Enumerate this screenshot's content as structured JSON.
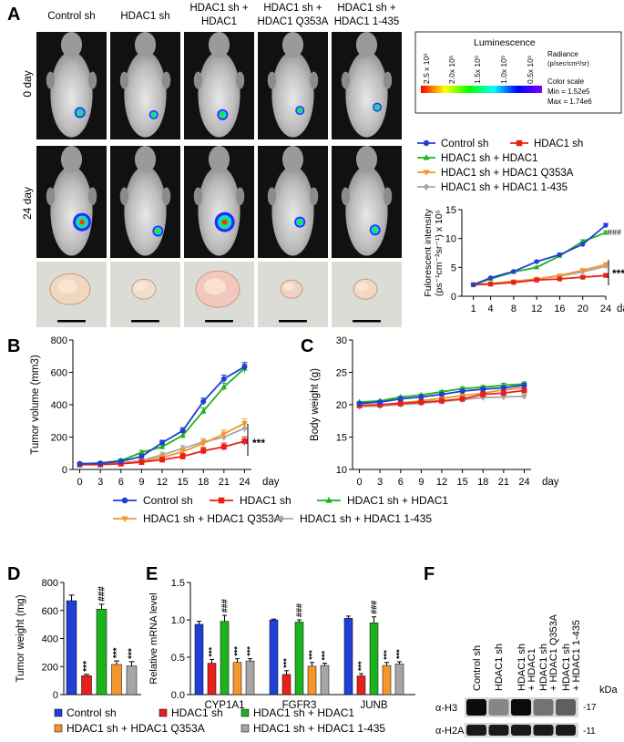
{
  "panel_letters": [
    "A",
    "B",
    "C",
    "D",
    "E",
    "F"
  ],
  "colors": {
    "control": "#1f3fd6",
    "hdac1_sh": "#e8201a",
    "hdac1_sh_hdac1": "#1db31d",
    "q353a": "#f3962b",
    "d1_435": "#a6a6a6"
  },
  "panelA": {
    "column_labels": [
      [
        "Control sh"
      ],
      [
        "HDAC1 sh"
      ],
      [
        "HDAC1 sh +",
        "HDAC1"
      ],
      [
        "HDAC1 sh +",
        "HDAC1 Q353A"
      ],
      [
        "HDAC1 sh +",
        "HDAC1 1-435"
      ]
    ],
    "row_labels": [
      "0 day",
      "24 day"
    ],
    "colorbar": {
      "title": "Luminescence",
      "ticks": [
        "2.5 x 10⁵",
        "2.0x 10⁵",
        "1.5x 10⁵",
        "1.0x 10⁵",
        "0.5x 10⁵"
      ],
      "radiance": [
        "Radiance",
        "(p/sec/cm²/sr)"
      ],
      "scale": [
        "Color scale",
        "Min = 1.52e5",
        "Max = 1.74e6"
      ]
    }
  },
  "chart_data": [
    {
      "id": "A-fluorescence",
      "type": "line",
      "title": "",
      "xlabel": "day",
      "ylabel": [
        "Fulorescent intensity",
        "(ps⁻¹cm⁻²sr⁻¹) x 10⁵"
      ],
      "x": [
        1,
        4,
        8,
        12,
        16,
        20,
        24
      ],
      "ylim": [
        0,
        15
      ],
      "yticks": [
        0,
        5,
        10,
        15
      ],
      "series": [
        {
          "name": "Control sh",
          "values": [
            2.0,
            3.2,
            4.3,
            6.0,
            7.2,
            9.0,
            12.3
          ]
        },
        {
          "name": "HDAC1 sh",
          "values": [
            2.0,
            2.1,
            2.4,
            2.8,
            3.0,
            3.3,
            3.6
          ]
        },
        {
          "name": "HDAC1 sh + HDAC1",
          "values": [
            2.0,
            3.0,
            4.2,
            5.0,
            7.0,
            9.5,
            11.0
          ]
        },
        {
          "name": "HDAC1 sh + HDAC1 Q353A",
          "values": [
            2.0,
            2.2,
            2.6,
            3.0,
            3.6,
            4.5,
            5.5
          ]
        },
        {
          "name": "HDAC1 sh + HDAC1 1-435",
          "values": [
            2.0,
            2.2,
            2.5,
            3.0,
            3.5,
            4.2,
            5.2
          ]
        }
      ],
      "annotations": [
        "###",
        "***"
      ]
    },
    {
      "id": "B-tumor-volume",
      "type": "line",
      "xlabel": "day",
      "ylabel": "Tumor volume (mm3)",
      "x": [
        0,
        3,
        6,
        9,
        12,
        15,
        18,
        21,
        24
      ],
      "ylim": [
        0,
        800
      ],
      "yticks": [
        0,
        200,
        400,
        600,
        800
      ],
      "series": [
        {
          "name": "Control sh",
          "values": [
            35,
            38,
            50,
            80,
            165,
            240,
            420,
            560,
            635
          ]
        },
        {
          "name": "HDAC1 sh",
          "values": [
            30,
            30,
            35,
            45,
            60,
            80,
            115,
            140,
            175
          ]
        },
        {
          "name": "HDAC1 sh + HDAC1",
          "values": [
            35,
            40,
            55,
            105,
            140,
            210,
            360,
            510,
            625
          ]
        },
        {
          "name": "HDAC1 sh + HDAC1 Q353A",
          "values": [
            30,
            32,
            38,
            50,
            75,
            110,
            160,
            220,
            285
          ]
        },
        {
          "name": "HDAC1 sh + HDAC1 1-435",
          "values": [
            30,
            33,
            40,
            55,
            90,
            130,
            170,
            200,
            255
          ]
        }
      ],
      "annotations": [
        "***"
      ]
    },
    {
      "id": "C-body-weight",
      "type": "line",
      "xlabel": "day",
      "ylabel": "Body weight (g)",
      "x": [
        0,
        3,
        6,
        9,
        12,
        15,
        18,
        21,
        24
      ],
      "ylim": [
        10,
        30
      ],
      "yticks": [
        10,
        15,
        20,
        25,
        30
      ],
      "series": [
        {
          "name": "Control sh",
          "values": [
            20.2,
            20.4,
            20.9,
            21.2,
            21.6,
            22.1,
            22.4,
            22.6,
            23.0
          ]
        },
        {
          "name": "HDAC1 sh",
          "values": [
            19.9,
            20.0,
            20.2,
            20.4,
            20.6,
            20.9,
            21.6,
            21.8,
            22.2
          ]
        },
        {
          "name": "HDAC1 sh + HDAC1",
          "values": [
            20.4,
            20.6,
            21.2,
            21.5,
            22.0,
            22.5,
            22.7,
            23.0,
            23.2
          ]
        },
        {
          "name": "HDAC1 sh + HDAC1 Q353A",
          "values": [
            19.8,
            20.0,
            20.3,
            20.6,
            21.0,
            21.4,
            21.8,
            22.3,
            22.6
          ]
        },
        {
          "name": "HDAC1 sh + HDAC1 1-435",
          "values": [
            19.7,
            19.8,
            20.0,
            20.2,
            20.5,
            20.8,
            21.1,
            21.2,
            21.3
          ]
        }
      ]
    },
    {
      "id": "D-tumor-weight",
      "type": "bar",
      "ylabel": "Tumor weight (mg)",
      "ylim": [
        0,
        800
      ],
      "yticks": [
        0,
        200,
        400,
        600,
        800
      ],
      "categories": [
        "Control sh",
        "HDAC1 sh",
        "HDAC1 sh + HDAC1",
        "HDAC1 sh + HDAC1 Q353A",
        "HDAC1 sh + HDAC1 1-435"
      ],
      "values": [
        670,
        135,
        610,
        215,
        205
      ],
      "errors": [
        40,
        10,
        35,
        25,
        30
      ],
      "significance": [
        "",
        "***",
        "###",
        "***",
        "***"
      ]
    },
    {
      "id": "E-mrna",
      "type": "bar",
      "ylabel": "Relative mRNA level",
      "ylim": [
        0,
        1.5
      ],
      "yticks": [
        "0.0",
        "0.5",
        "1.0",
        "1.5"
      ],
      "categories": [
        "CYP1A1",
        "FGFR3",
        "JUNB"
      ],
      "series": [
        {
          "name": "Control sh",
          "values": [
            0.94,
            1.0,
            1.02
          ],
          "errors": [
            0.04,
            0.01,
            0.03
          ],
          "sig": [
            "",
            "",
            ""
          ]
        },
        {
          "name": "HDAC1 sh",
          "values": [
            0.42,
            0.27,
            0.25
          ],
          "errors": [
            0.05,
            0.05,
            0.03
          ],
          "sig": [
            "***",
            "***",
            "***"
          ]
        },
        {
          "name": "HDAC1 sh + HDAC1",
          "values": [
            0.98,
            0.97,
            0.96
          ],
          "errors": [
            0.08,
            0.03,
            0.08
          ],
          "sig": [
            "###",
            "###",
            "###"
          ]
        },
        {
          "name": "HDAC1 sh + HDAC1 Q353A",
          "values": [
            0.43,
            0.38,
            0.39
          ],
          "errors": [
            0.05,
            0.05,
            0.04
          ],
          "sig": [
            "***",
            "***",
            "***"
          ]
        },
        {
          "name": "HDAC1 sh + HDAC1 1-435",
          "values": [
            0.45,
            0.39,
            0.41
          ],
          "errors": [
            0.03,
            0.03,
            0.03
          ],
          "sig": [
            "***",
            "***",
            "***"
          ]
        }
      ]
    }
  ],
  "legendA": [
    "Control sh",
    "HDAC1 sh",
    "HDAC1 sh + HDAC1",
    "HDAC1 sh + HDAC1 Q353A",
    "HDAC1 sh + HDAC1 1-435"
  ],
  "legendBC": [
    "Control sh",
    "HDAC1 sh",
    "HDAC1 sh + HDAC1",
    "HDAC1 sh + HDAC1 Q353A",
    "HDAC1 sh + HDAC1 1-435"
  ],
  "legendDE": [
    "Control sh",
    "HDAC1 sh",
    "HDAC1 sh + HDAC1",
    "HDAC1 sh + HDAC1 Q353A",
    "HDAC1 sh + HDAC1 1-435"
  ],
  "panelF": {
    "lanes": [
      [
        "Control sh"
      ],
      [
        "HDAC1 sh"
      ],
      [
        "HDAC1 sh",
        "+ HDAC1"
      ],
      [
        "HDAC1 sh",
        "+ HDAC1 Q353A"
      ],
      [
        "HDAC1 sh",
        "+ HDAC1 1-435"
      ]
    ],
    "rows": [
      "α-H3",
      "α-H2A"
    ],
    "kda_label": "kDa",
    "markers": [
      "-17",
      "-11"
    ],
    "h3_intensity": [
      1.0,
      0.35,
      1.0,
      0.45,
      0.55
    ]
  }
}
